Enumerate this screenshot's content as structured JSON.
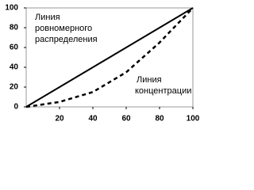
{
  "chart_data": {
    "type": "line",
    "x": [
      0,
      20,
      40,
      60,
      80,
      100
    ],
    "series": [
      {
        "color": "#000000",
        "style": "solid",
        "values": [
          0,
          20,
          40,
          60,
          80,
          100
        ]
      },
      {
        "color": "#000000",
        "style": "dashed",
        "values": [
          0,
          5,
          15,
          35,
          65,
          100
        ]
      }
    ],
    "xlim": [
      0,
      100
    ],
    "xticks": [
      20,
      40,
      60,
      80,
      100
    ],
    "ylim": [
      0,
      100
    ],
    "yticks": [
      0,
      20,
      40,
      60,
      80,
      100
    ],
    "annotations": [
      {
        "lines": [
          "Линия",
          "ровномерного",
          "распределения"
        ]
      },
      {
        "lines": [
          "Линия",
          "концентрации"
        ]
      }
    ]
  }
}
